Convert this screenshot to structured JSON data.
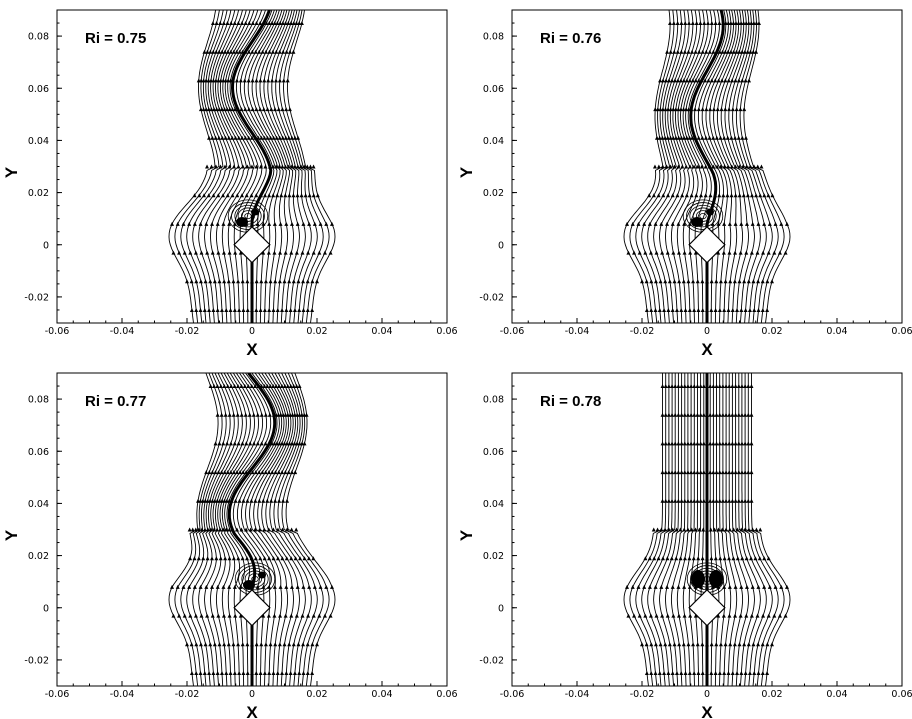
{
  "figure": {
    "xlabel": "X",
    "ylabel": "Y"
  },
  "chart_data": [
    {
      "type": "streamline",
      "title": "Ri = 0.75",
      "xlabel": "X",
      "ylabel": "Y",
      "xlim": [
        -0.06,
        0.06
      ],
      "ylim": [
        -0.03,
        0.09
      ],
      "xticks": [
        "-0.06",
        "-0.04",
        "-0.02",
        "0",
        "0.02",
        "0.04",
        "0.06"
      ],
      "yticks": [
        "-0.02",
        "0",
        "0.02",
        "0.04",
        "0.06",
        "0.08"
      ],
      "body_center": [
        0,
        0
      ],
      "wake": {
        "amplitude": 0.006,
        "phase": 0.0,
        "recirculation": "asymmetric-left"
      }
    },
    {
      "type": "streamline",
      "title": "Ri = 0.76",
      "xlabel": "X",
      "ylabel": "Y",
      "xlim": [
        -0.06,
        0.06
      ],
      "ylim": [
        -0.03,
        0.09
      ],
      "xticks": [
        "-0.06",
        "-0.04",
        "-0.02",
        "0",
        "0.02",
        "0.04",
        "0.06"
      ],
      "yticks": [
        "-0.02",
        "0",
        "0.02",
        "0.04",
        "0.06",
        "0.08"
      ],
      "body_center": [
        0,
        0
      ],
      "wake": {
        "amplitude": 0.005,
        "phase": 1.0,
        "recirculation": "asymmetric-left"
      }
    },
    {
      "type": "streamline",
      "title": "Ri = 0.77",
      "xlabel": "X",
      "ylabel": "Y",
      "xlim": [
        -0.06,
        0.06
      ],
      "ylim": [
        -0.03,
        0.09
      ],
      "xticks": [
        "-0.06",
        "-0.04",
        "-0.02",
        "0",
        "0.02",
        "0.04",
        "0.06"
      ],
      "yticks": [
        "-0.02",
        "0",
        "0.02",
        "0.04",
        "0.06",
        "0.08"
      ],
      "body_center": [
        0,
        0
      ],
      "wake": {
        "amplitude": 0.007,
        "phase": 2.2,
        "recirculation": "asymmetric-right"
      }
    },
    {
      "type": "streamline",
      "title": "Ri = 0.78",
      "xlabel": "X",
      "ylabel": "Y",
      "xlim": [
        -0.06,
        0.06
      ],
      "ylim": [
        -0.03,
        0.09
      ],
      "xticks": [
        "-0.06",
        "-0.04",
        "-0.02",
        "0",
        "0.02",
        "0.04",
        "0.06"
      ],
      "yticks": [
        "-0.02",
        "0",
        "0.02",
        "0.04",
        "0.06",
        "0.08"
      ],
      "body_center": [
        0,
        0
      ],
      "wake": {
        "amplitude": 0.0,
        "phase": 0.0,
        "recirculation": "symmetric"
      }
    }
  ]
}
